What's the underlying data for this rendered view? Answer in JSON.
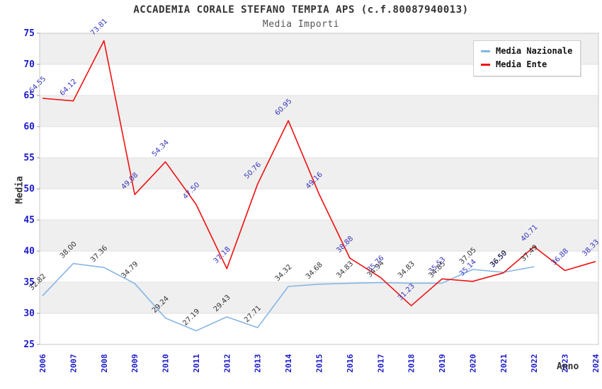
{
  "chart_data": {
    "type": "line",
    "title": "ACCADEMIA CORALE STEFANO TEMPIA APS (c.f.80087940013)",
    "subtitle": "Media Importi",
    "xlabel": "Anno",
    "ylabel": "Media",
    "ylim": [
      25,
      75
    ],
    "ytick_step": 5,
    "x": [
      2006,
      2007,
      2008,
      2009,
      2010,
      2011,
      2012,
      2013,
      2014,
      2015,
      2016,
      2017,
      2018,
      2019,
      2020,
      2021,
      2022,
      2023,
      2024
    ],
    "series": [
      {
        "name": "Media Nazionale",
        "color": "#85b5e5",
        "label_color": "#333333",
        "values": [
          32.82,
          38.0,
          37.36,
          34.79,
          29.24,
          27.19,
          29.43,
          27.71,
          34.32,
          34.68,
          34.83,
          34.94,
          34.83,
          34.85,
          37.05,
          36.59,
          37.49,
          null,
          null
        ]
      },
      {
        "name": "Media Ente",
        "color": "#f01010",
        "label_color": "#3434bd",
        "values": [
          64.55,
          64.12,
          73.81,
          49.08,
          54.34,
          47.5,
          37.18,
          50.76,
          60.95,
          49.16,
          38.88,
          35.76,
          31.23,
          35.53,
          35.14,
          36.5,
          40.71,
          36.88,
          38.33
        ]
      }
    ],
    "legend": {
      "position": "top-right",
      "entries": [
        "Media Nazionale",
        "Media Ente"
      ]
    },
    "grid": "horizontal-alternating-bands",
    "band_color": "#efefef",
    "axis_tick_color": "#1a1ac8"
  }
}
